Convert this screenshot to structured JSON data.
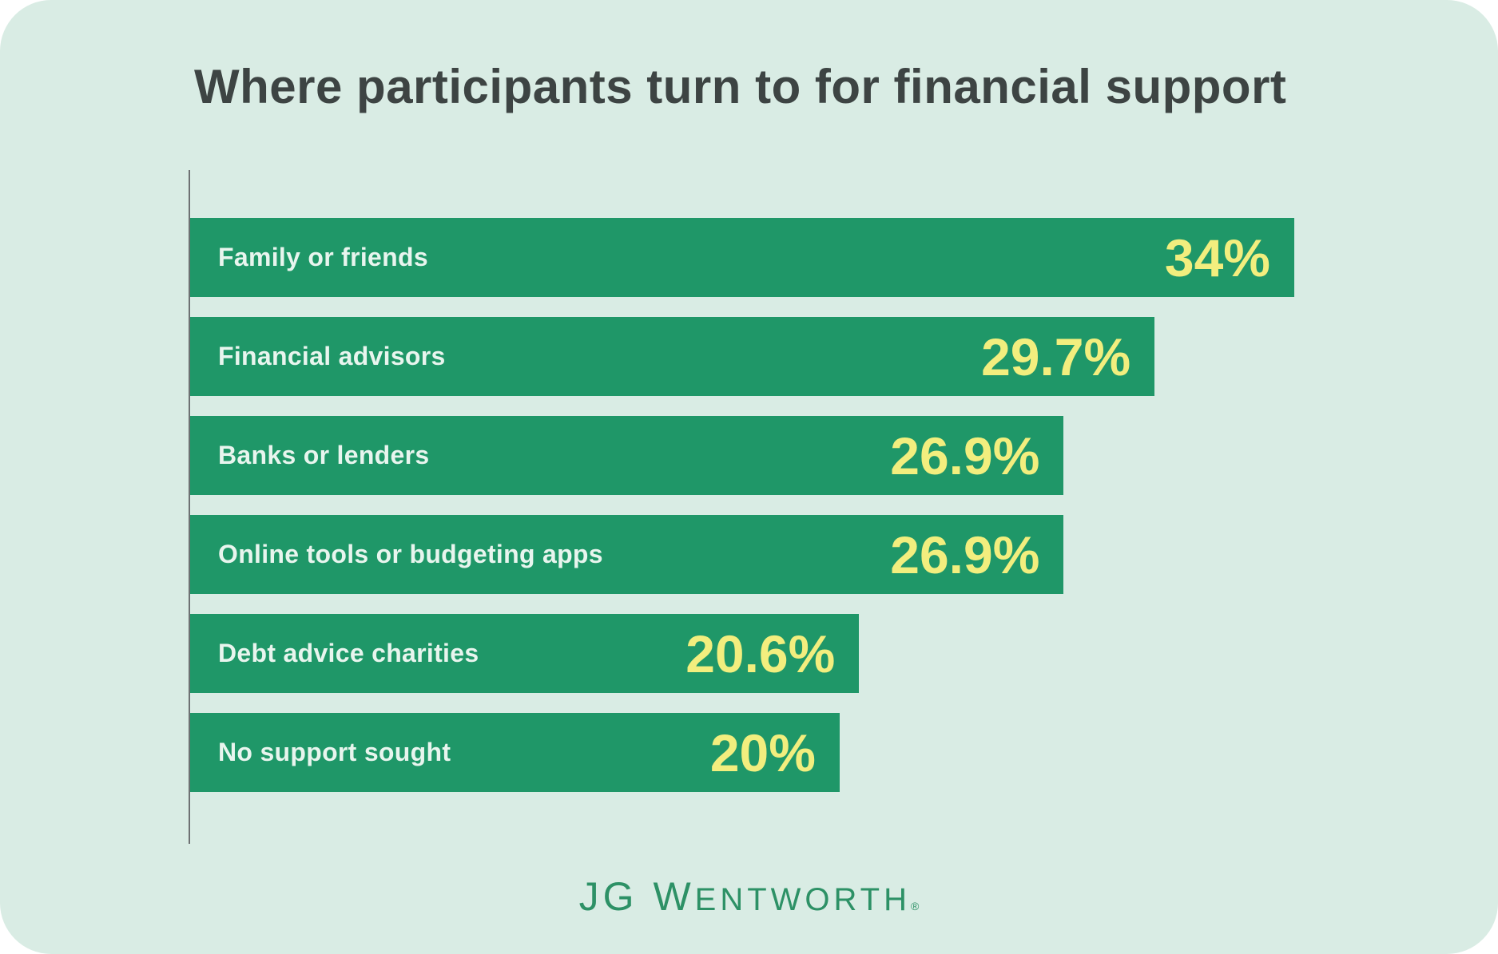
{
  "page": {
    "background": "#ffffff",
    "card_background": "#d9ece4"
  },
  "title": {
    "text": "Where participants turn to for financial support",
    "color": "#3d4443"
  },
  "chart_data": {
    "type": "bar",
    "orientation": "horizontal",
    "title": "Where participants turn to for financial support",
    "categories": [
      "Family or friends",
      "Financial advisors",
      "Banks or lenders",
      "Online tools or budgeting apps",
      "Debt advice charities",
      "No support sought"
    ],
    "values": [
      34,
      29.7,
      26.9,
      26.9,
      20.6,
      20
    ],
    "value_labels": [
      "34%",
      "29.7%",
      "26.9%",
      "26.9%",
      "20.6%",
      "20%"
    ],
    "unit": "percent",
    "xlim": [
      0,
      34
    ],
    "grid": false,
    "legend": false,
    "bar_color": "#1f9768",
    "category_label_color": "#e8f5ee",
    "value_label_color": "#f2ee7e",
    "axis_color": "#6e7173"
  },
  "footer": {
    "logo_lead": "JG W",
    "logo_rest": "ENTWORTH",
    "registered_mark": "®",
    "logo_color": "#2d9166"
  }
}
